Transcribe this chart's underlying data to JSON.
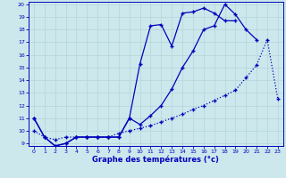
{
  "xlabel": "Graphe des températures (°c)",
  "bg_color": "#cce8ec",
  "line_color": "#0000bb",
  "xlim": [
    0,
    23
  ],
  "ylim": [
    9,
    20
  ],
  "xticks": [
    0,
    1,
    2,
    3,
    4,
    5,
    6,
    7,
    8,
    9,
    10,
    11,
    12,
    13,
    14,
    15,
    16,
    17,
    18,
    19,
    20,
    21,
    22,
    23
  ],
  "yticks": [
    9,
    10,
    11,
    12,
    13,
    14,
    15,
    16,
    17,
    18,
    19,
    20
  ],
  "series1_x": [
    0,
    1,
    2,
    3,
    4,
    5,
    6,
    7,
    8,
    9,
    10,
    11,
    12,
    13,
    14,
    15,
    16,
    17,
    18,
    19,
    20,
    21,
    22,
    23
  ],
  "series1_y": [
    11.0,
    9.5,
    8.8,
    9.0,
    9.5,
    9.5,
    9.5,
    9.5,
    9.5,
    11.0,
    15.3,
    18.3,
    18.4,
    16.7,
    19.3,
    19.4,
    19.7,
    19.3,
    18.7,
    18.7,
    null,
    null,
    null,
    null
  ],
  "series2_x": [
    0,
    1,
    2,
    3,
    4,
    5,
    6,
    7,
    8,
    9,
    10,
    11,
    12,
    13,
    14,
    15,
    16,
    17,
    18,
    19,
    20,
    21,
    22,
    23
  ],
  "series2_y": [
    11.0,
    9.5,
    8.8,
    9.0,
    9.5,
    9.5,
    9.5,
    9.5,
    9.5,
    11.0,
    10.5,
    11.2,
    12.0,
    13.3,
    15.0,
    16.3,
    18.0,
    18.3,
    20.0,
    19.2,
    18.0,
    17.2,
    null,
    null
  ],
  "series3_x": [
    0,
    1,
    2,
    3,
    4,
    5,
    6,
    7,
    8,
    9,
    10,
    11,
    12,
    13,
    14,
    15,
    16,
    17,
    18,
    19,
    20,
    21,
    22,
    23
  ],
  "series3_y": [
    10.0,
    9.5,
    9.3,
    9.5,
    9.5,
    9.5,
    9.5,
    9.5,
    9.8,
    10.0,
    10.2,
    10.4,
    10.7,
    11.0,
    11.3,
    11.7,
    12.0,
    12.4,
    12.8,
    13.2,
    14.2,
    15.2,
    17.2,
    12.5
  ],
  "grid_color": "#b8d8dc",
  "marker": "+"
}
